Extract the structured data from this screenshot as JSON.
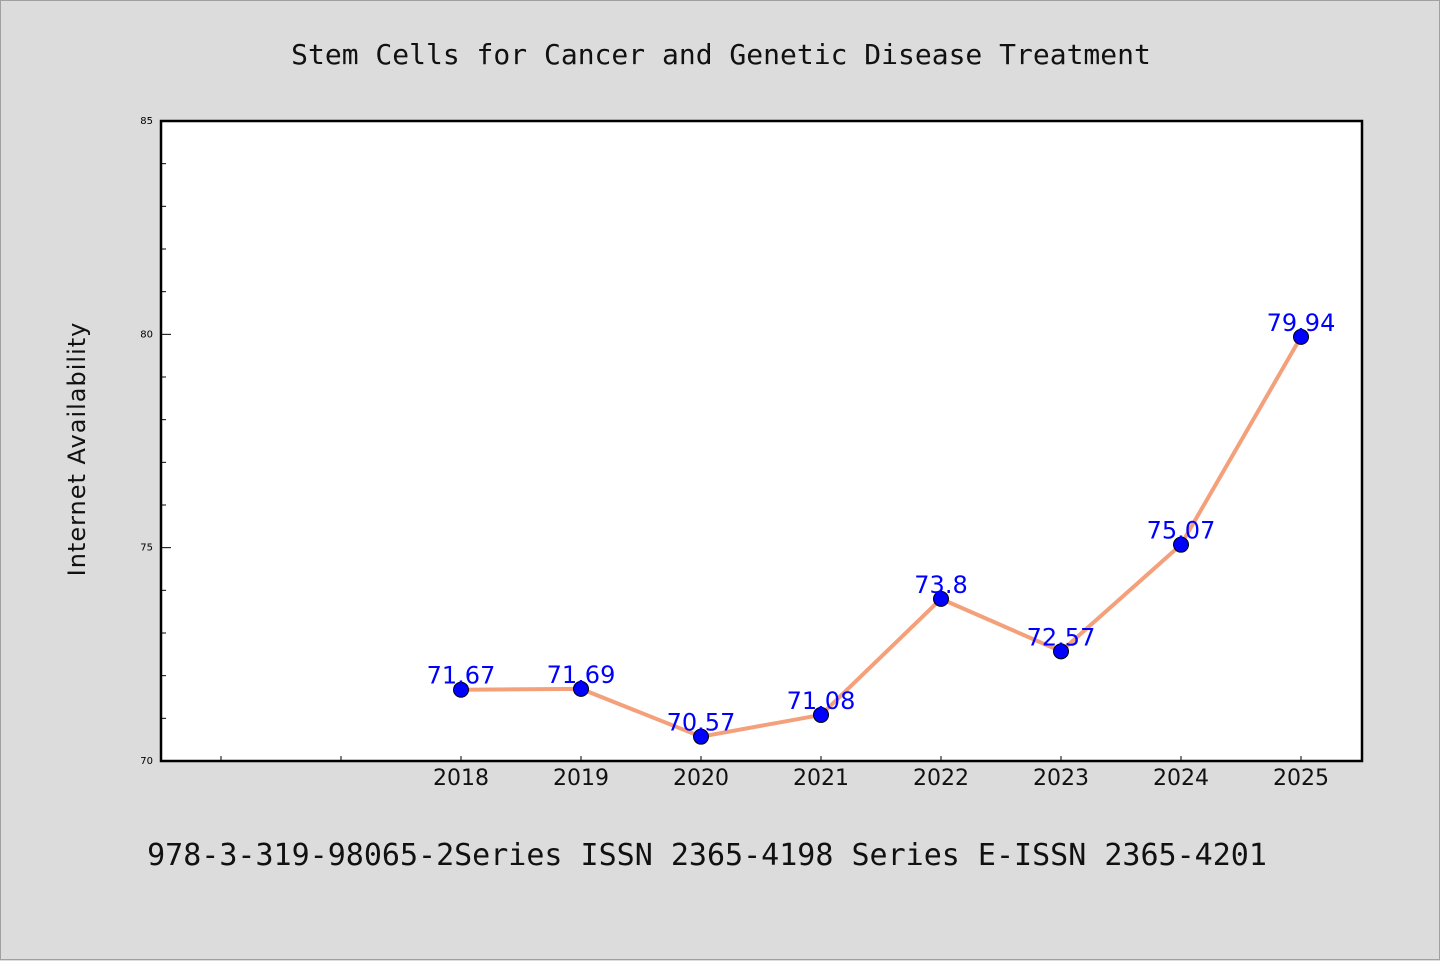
{
  "chart_data": {
    "type": "line",
    "title": "Stem Cells for Cancer and Genetic Disease Treatment",
    "xlabel": "",
    "ylabel": "Internet Availability",
    "categories": [
      "2018",
      "2019",
      "2020",
      "2021",
      "2022",
      "2023",
      "2024",
      "2025"
    ],
    "series": [
      {
        "values": [
          71.67,
          71.69,
          70.57,
          71.08,
          73.8,
          72.57,
          75.07,
          79.94
        ],
        "data_labels": [
          "71.67",
          "71.69",
          "70.57",
          "71.08",
          "73.8",
          "72.57",
          "75.07",
          "79.94"
        ],
        "line_color": "#f4a07a",
        "marker_color": "#0000ff",
        "label_color": "#0000ff"
      }
    ],
    "ylim": [
      70,
      85
    ],
    "y_major_ticks": [
      "70",
      "75",
      "80",
      "85"
    ],
    "grid": false,
    "legend": "none"
  },
  "footer": {
    "text": "978-3-319-98065-2Series ISSN 2365-4198 Series E-ISSN 2365-4201"
  },
  "colors": {
    "background": "#dcdcdc",
    "plot_background": "#ffffff",
    "axis": "#000000"
  }
}
